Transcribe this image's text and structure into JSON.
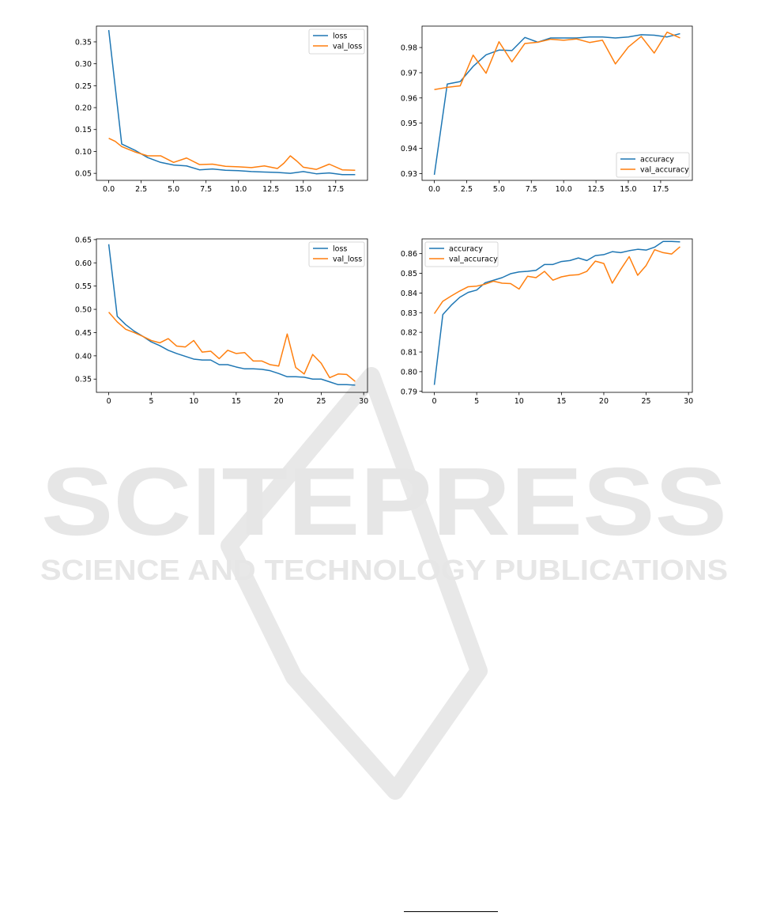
{
  "watermark": {
    "title": "SCITEPRESS",
    "subtitle": "SCIENCE AND TECHNOLOGY PUBLICATIONS",
    "color": "#e6e6e6"
  },
  "colors": {
    "series1": "#1f77b4",
    "series2": "#ff7f0e",
    "axis": "#000000"
  },
  "chart_data": [
    {
      "id": "chart1",
      "type": "line",
      "title": "",
      "xlabel": "",
      "ylabel": "",
      "xlim": [
        -0.95,
        19.95
      ],
      "ylim": [
        0.034,
        0.386
      ],
      "xticks": [
        0,
        2.5,
        5,
        7.5,
        10,
        12.5,
        15,
        17.5
      ],
      "xtick_labels": [
        "0.0",
        "2.5",
        "5.0",
        "7.5",
        "10.0",
        "12.5",
        "15.0",
        "17.5"
      ],
      "yticks": [
        0.05,
        0.1,
        0.15,
        0.2,
        0.25,
        0.3,
        0.35
      ],
      "ytick_labels": [
        "0.05",
        "0.10",
        "0.15",
        "0.20",
        "0.25",
        "0.30",
        "0.35"
      ],
      "legend_position": "top-right",
      "grid": false,
      "series": [
        {
          "name": "loss",
          "color": "#1f77b4",
          "x": [
            0,
            1,
            2,
            3,
            4,
            5,
            6,
            7,
            8,
            9,
            10,
            11,
            12,
            13,
            14,
            15,
            16,
            17,
            18,
            19
          ],
          "values": [
            0.377,
            0.117,
            0.103,
            0.086,
            0.075,
            0.069,
            0.067,
            0.058,
            0.06,
            0.057,
            0.056,
            0.054,
            0.053,
            0.052,
            0.05,
            0.054,
            0.049,
            0.051,
            0.047,
            0.047
          ]
        },
        {
          "name": "val_loss",
          "color": "#ff7f0e",
          "x": [
            0,
            0.5,
            1,
            2,
            3,
            3.5,
            4,
            5,
            6,
            7,
            8,
            9,
            10,
            11,
            12,
            13,
            13.5,
            14,
            14.5,
            15,
            16,
            17,
            18,
            19
          ],
          "values": [
            0.13,
            0.123,
            0.111,
            0.099,
            0.09,
            0.09,
            0.09,
            0.075,
            0.085,
            0.07,
            0.071,
            0.066,
            0.065,
            0.063,
            0.067,
            0.061,
            0.073,
            0.09,
            0.078,
            0.064,
            0.059,
            0.071,
            0.058,
            0.057
          ]
        }
      ]
    },
    {
      "id": "chart2",
      "type": "line",
      "title": "",
      "xlabel": "",
      "ylabel": "",
      "xlim": [
        -0.95,
        19.95
      ],
      "ylim": [
        0.9273,
        0.9885
      ],
      "xticks": [
        0,
        2.5,
        5,
        7.5,
        10,
        12.5,
        15,
        17.5
      ],
      "xtick_labels": [
        "0.0",
        "2.5",
        "5.0",
        "7.5",
        "10.0",
        "12.5",
        "15.0",
        "17.5"
      ],
      "yticks": [
        0.93,
        0.94,
        0.95,
        0.96,
        0.97,
        0.98
      ],
      "ytick_labels": [
        "0.93",
        "0.94",
        "0.95",
        "0.96",
        "0.97",
        "0.98"
      ],
      "legend_position": "bottom-right",
      "grid": false,
      "series": [
        {
          "name": "accuracy",
          "color": "#1f77b4",
          "x": [
            0,
            1,
            2,
            3,
            4,
            5,
            6,
            7,
            8,
            9,
            10,
            11,
            12,
            13,
            14,
            15,
            16,
            17,
            18,
            19
          ],
          "values": [
            0.9295,
            0.9655,
            0.9665,
            0.9725,
            0.9771,
            0.979,
            0.9788,
            0.984,
            0.9821,
            0.9838,
            0.9838,
            0.9838,
            0.9842,
            0.9842,
            0.9838,
            0.9842,
            0.9851,
            0.9849,
            0.9842,
            0.9855
          ]
        },
        {
          "name": "val_accuracy",
          "color": "#ff7f0e",
          "x": [
            0,
            1,
            2,
            3,
            4,
            5,
            6,
            7,
            8,
            9,
            10,
            11,
            12,
            13,
            14,
            15,
            16,
            17,
            18,
            19
          ],
          "values": [
            0.9633,
            0.9642,
            0.9648,
            0.977,
            0.9698,
            0.9823,
            0.9743,
            0.9816,
            0.9821,
            0.9833,
            0.9829,
            0.9834,
            0.982,
            0.9829,
            0.9735,
            0.9802,
            0.9844,
            0.9778,
            0.9861,
            0.9838
          ]
        }
      ]
    },
    {
      "id": "chart3",
      "type": "line",
      "title": "",
      "xlabel": "",
      "ylabel": "",
      "xlim": [
        -1.45,
        30.45
      ],
      "ylim": [
        0.3215,
        0.6515
      ],
      "xticks": [
        0,
        5,
        10,
        15,
        20,
        25,
        30
      ],
      "xtick_labels": [
        "0",
        "5",
        "10",
        "15",
        "20",
        "25",
        "30"
      ],
      "yticks": [
        0.35,
        0.4,
        0.45,
        0.5,
        0.55,
        0.6,
        0.65
      ],
      "ytick_labels": [
        "0.35",
        "0.40",
        "0.45",
        "0.50",
        "0.55",
        "0.60",
        "0.65"
      ],
      "legend_position": "top-right",
      "grid": false,
      "series": [
        {
          "name": "loss",
          "color": "#1f77b4",
          "x": [
            0,
            1,
            2,
            3,
            4,
            5,
            6,
            7,
            8,
            9,
            10,
            11,
            12,
            13,
            14,
            15,
            16,
            17,
            18,
            19,
            20,
            21,
            22,
            23,
            24,
            25,
            26,
            27,
            28,
            29
          ],
          "values": [
            0.64,
            0.485,
            0.467,
            0.453,
            0.442,
            0.43,
            0.422,
            0.412,
            0.405,
            0.399,
            0.393,
            0.391,
            0.391,
            0.381,
            0.381,
            0.376,
            0.372,
            0.372,
            0.371,
            0.368,
            0.362,
            0.355,
            0.355,
            0.354,
            0.35,
            0.35,
            0.344,
            0.338,
            0.338,
            0.337
          ]
        },
        {
          "name": "val_loss",
          "color": "#ff7f0e",
          "x": [
            0,
            1,
            2,
            3,
            4,
            5,
            6,
            7,
            8,
            9,
            10,
            11,
            12,
            13,
            14,
            15,
            16,
            17,
            18,
            19,
            20,
            21,
            22,
            23,
            24,
            25,
            26,
            27,
            28,
            29
          ],
          "values": [
            0.494,
            0.473,
            0.457,
            0.45,
            0.442,
            0.433,
            0.428,
            0.437,
            0.421,
            0.419,
            0.433,
            0.408,
            0.41,
            0.394,
            0.412,
            0.405,
            0.407,
            0.389,
            0.389,
            0.381,
            0.378,
            0.447,
            0.375,
            0.361,
            0.403,
            0.384,
            0.353,
            0.361,
            0.36,
            0.345
          ]
        }
      ]
    },
    {
      "id": "chart4",
      "type": "line",
      "title": "",
      "xlabel": "",
      "ylabel": "",
      "xlim": [
        -1.45,
        30.45
      ],
      "ylim": [
        0.7895,
        0.8675
      ],
      "xticks": [
        0,
        5,
        10,
        15,
        20,
        25,
        30
      ],
      "xtick_labels": [
        "0",
        "5",
        "10",
        "15",
        "20",
        "25",
        "30"
      ],
      "yticks": [
        0.79,
        0.8,
        0.81,
        0.82,
        0.83,
        0.84,
        0.85,
        0.86
      ],
      "ytick_labels": [
        "0.79",
        "0.80",
        "0.81",
        "0.82",
        "0.83",
        "0.84",
        "0.85",
        "0.86"
      ],
      "legend_position": "top-left",
      "grid": false,
      "series": [
        {
          "name": "accuracy",
          "color": "#1f77b4",
          "x": [
            0,
            1,
            2,
            3,
            4,
            5,
            6,
            7,
            8,
            9,
            10,
            11,
            12,
            13,
            14,
            15,
            16,
            17,
            18,
            19,
            20,
            21,
            22,
            23,
            24,
            25,
            26,
            27,
            28,
            29
          ],
          "values": [
            0.7933,
            0.829,
            0.8338,
            0.8378,
            0.8403,
            0.8415,
            0.8452,
            0.8465,
            0.8478,
            0.8498,
            0.8507,
            0.851,
            0.8515,
            0.8545,
            0.8545,
            0.856,
            0.8565,
            0.8578,
            0.8565,
            0.859,
            0.8595,
            0.861,
            0.8605,
            0.8615,
            0.8622,
            0.8618,
            0.8633,
            0.8662,
            0.8662,
            0.866
          ]
        },
        {
          "name": "val_accuracy",
          "color": "#ff7f0e",
          "x": [
            0,
            1,
            2,
            3,
            4,
            5,
            6,
            7,
            8,
            9,
            10,
            11,
            12,
            13,
            14,
            15,
            16,
            17,
            18,
            19,
            20,
            21,
            22,
            23,
            24,
            25,
            26,
            27,
            28,
            29
          ],
          "values": [
            0.8295,
            0.8358,
            0.8385,
            0.841,
            0.8432,
            0.8435,
            0.8445,
            0.846,
            0.845,
            0.8448,
            0.842,
            0.8485,
            0.8478,
            0.851,
            0.8465,
            0.8482,
            0.849,
            0.8493,
            0.851,
            0.8562,
            0.855,
            0.845,
            0.852,
            0.8585,
            0.849,
            0.854,
            0.862,
            0.8605,
            0.8598,
            0.8635
          ]
        }
      ]
    }
  ]
}
